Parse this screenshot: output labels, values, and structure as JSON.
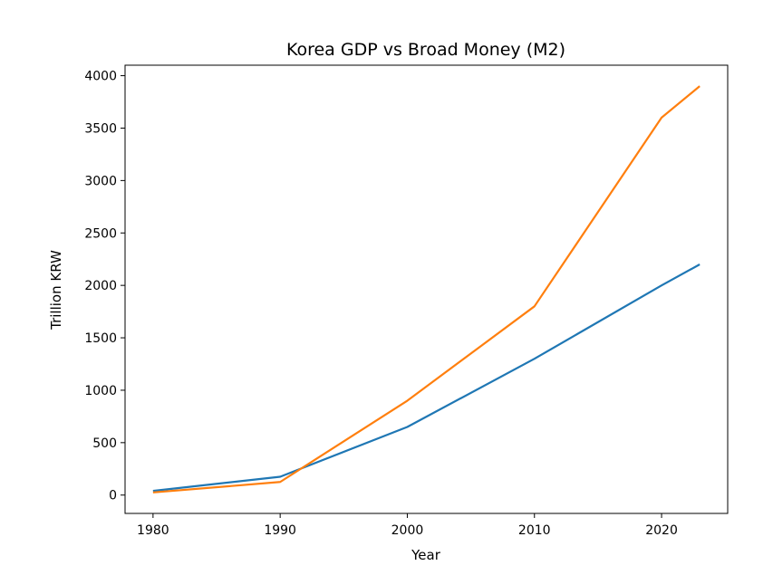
{
  "chart_data": {
    "type": "line",
    "title": "Korea GDP vs Broad Money (M2)",
    "xlabel": "Year",
    "ylabel": "Trillion KRW",
    "x": [
      1980,
      1990,
      2000,
      2010,
      2020,
      2023
    ],
    "series": [
      {
        "color": "#1f77b4",
        "values": [
          40,
          175,
          650,
          1300,
          2000,
          2200
        ]
      },
      {
        "color": "#ff7f0e",
        "values": [
          25,
          125,
          900,
          1800,
          3600,
          3900
        ]
      }
    ],
    "xlim": [
      1977.8,
      2025.2
    ],
    "ylim": [
      -175,
      4100
    ],
    "xticks": [
      1980,
      1990,
      2000,
      2010,
      2020
    ],
    "yticks": [
      0,
      500,
      1000,
      1500,
      2000,
      2500,
      3000,
      3500,
      4000
    ],
    "grid": false,
    "legend": "none"
  }
}
